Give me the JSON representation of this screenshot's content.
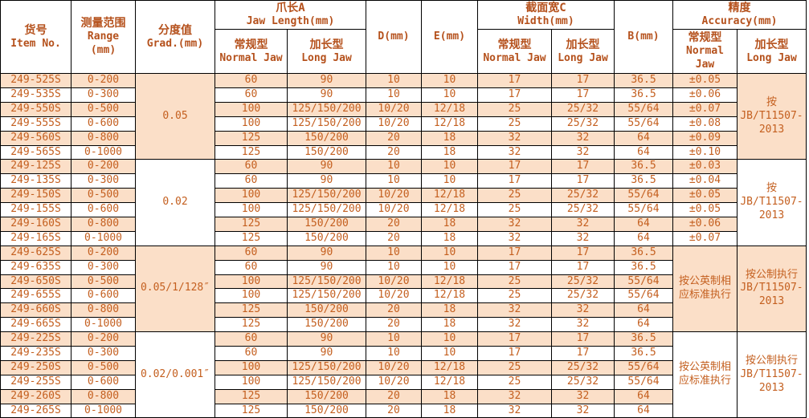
{
  "colors": {
    "header_text": "#b5511c",
    "body_text": "#c45f1f",
    "stripe_bg": "#fbdfc8",
    "border": "#000000",
    "white_bg": "#ffffff"
  },
  "table": {
    "header": {
      "item_no": "货号\nItem No.",
      "range": "测量范围\nRange\n(mm)",
      "grad": "分度值\nGrad.(mm)",
      "jaw": "爪长A\nJaw Length(mm)",
      "d": "D(mm)",
      "e": "E(mm)",
      "width": "截面宽C\nWidth(mm)",
      "b": "B(mm)",
      "accuracy": "精度\nAccuracy(mm)",
      "sub_normal": "常规型\nNormal Jaw",
      "sub_long": "加长型\nLong Jaw"
    },
    "groups": [
      {
        "grad": "0.05",
        "accuracy_long": "按\nJB/T11507-\n2013",
        "rows": [
          {
            "item": "249-525S",
            "range": "0-200",
            "jaw_normal": "60",
            "jaw_long": "90",
            "d": "10",
            "e": "10",
            "width_normal": "17",
            "width_long": "17",
            "b": "36.5",
            "accuracy_normal": "±0.05"
          },
          {
            "item": "249-535S",
            "range": "0-300",
            "jaw_normal": "60",
            "jaw_long": "90",
            "d": "10",
            "e": "10",
            "width_normal": "17",
            "width_long": "17",
            "b": "36.5",
            "accuracy_normal": "±0.06"
          },
          {
            "item": "249-550S",
            "range": "0-500",
            "jaw_normal": "100",
            "jaw_long": "125/150/200",
            "d": "10/20",
            "e": "12/18",
            "width_normal": "25",
            "width_long": "25/32",
            "b": "55/64",
            "accuracy_normal": "±0.07"
          },
          {
            "item": "249-555S",
            "range": "0-600",
            "jaw_normal": "100",
            "jaw_long": "125/150/200",
            "d": "10/20",
            "e": "12/18",
            "width_normal": "25",
            "width_long": "25/32",
            "b": "55/64",
            "accuracy_normal": "±0.08"
          },
          {
            "item": "249-560S",
            "range": "0-800",
            "jaw_normal": "125",
            "jaw_long": "150/200",
            "d": "20",
            "e": "18",
            "width_normal": "32",
            "width_long": "32",
            "b": "64",
            "accuracy_normal": "±0.09"
          },
          {
            "item": "249-565S",
            "range": "0-1000",
            "jaw_normal": "125",
            "jaw_long": "150/200",
            "d": "20",
            "e": "18",
            "width_normal": "32",
            "width_long": "32",
            "b": "64",
            "accuracy_normal": "±0.10"
          }
        ]
      },
      {
        "grad": "0.02",
        "accuracy_long": "按\nJB/T11507-\n2013",
        "rows": [
          {
            "item": "249-125S",
            "range": "0-200",
            "jaw_normal": "60",
            "jaw_long": "90",
            "d": "10",
            "e": "10",
            "width_normal": "17",
            "width_long": "17",
            "b": "36.5",
            "accuracy_normal": "±0.03"
          },
          {
            "item": "249-135S",
            "range": "0-300",
            "jaw_normal": "60",
            "jaw_long": "90",
            "d": "10",
            "e": "10",
            "width_normal": "17",
            "width_long": "17",
            "b": "36.5",
            "accuracy_normal": "±0.04"
          },
          {
            "item": "249-150S",
            "range": "0-500",
            "jaw_normal": "100",
            "jaw_long": "125/150/200",
            "d": "10/20",
            "e": "12/18",
            "width_normal": "25",
            "width_long": "25/32",
            "b": "55/64",
            "accuracy_normal": "±0.05"
          },
          {
            "item": "249-155S",
            "range": "0-600",
            "jaw_normal": "100",
            "jaw_long": "125/150/200",
            "d": "10/20",
            "e": "12/18",
            "width_normal": "25",
            "width_long": "25/32",
            "b": "55/64",
            "accuracy_normal": "±0.05"
          },
          {
            "item": "249-160S",
            "range": "0-800",
            "jaw_normal": "125",
            "jaw_long": "150/200",
            "d": "20",
            "e": "18",
            "width_normal": "32",
            "width_long": "32",
            "b": "64",
            "accuracy_normal": "±0.06"
          },
          {
            "item": "249-165S",
            "range": "0-1000",
            "jaw_normal": "125",
            "jaw_long": "150/200",
            "d": "20",
            "e": "18",
            "width_normal": "32",
            "width_long": "32",
            "b": "64",
            "accuracy_normal": "±0.07"
          }
        ]
      },
      {
        "grad": "0.05/1/128″",
        "accuracy_normal_merged": "按公英制相\n应标准执行",
        "accuracy_long": "按公制执行\nJB/T11507-\n2013",
        "rows": [
          {
            "item": "249-625S",
            "range": "0-200",
            "jaw_normal": "60",
            "jaw_long": "90",
            "d": "10",
            "e": "10",
            "width_normal": "17",
            "width_long": "17",
            "b": "36.5"
          },
          {
            "item": "249-635S",
            "range": "0-300",
            "jaw_normal": "60",
            "jaw_long": "90",
            "d": "10",
            "e": "10",
            "width_normal": "17",
            "width_long": "17",
            "b": "36.5"
          },
          {
            "item": "249-650S",
            "range": "0-500",
            "jaw_normal": "100",
            "jaw_long": "125/150/200",
            "d": "10/20",
            "e": "12/18",
            "width_normal": "25",
            "width_long": "25/32",
            "b": "55/64"
          },
          {
            "item": "249-655S",
            "range": "0-600",
            "jaw_normal": "100",
            "jaw_long": "125/150/200",
            "d": "10/20",
            "e": "12/18",
            "width_normal": "25",
            "width_long": "25/32",
            "b": "55/64"
          },
          {
            "item": "249-660S",
            "range": "0-800",
            "jaw_normal": "125",
            "jaw_long": "150/200",
            "d": "20",
            "e": "18",
            "width_normal": "32",
            "width_long": "32",
            "b": "64"
          },
          {
            "item": "249-665S",
            "range": "0-1000",
            "jaw_normal": "125",
            "jaw_long": "150/200",
            "d": "20",
            "e": "18",
            "width_normal": "32",
            "width_long": "32",
            "b": "64"
          }
        ]
      },
      {
        "grad": "0.02/0.001″",
        "accuracy_normal_merged": "按公英制相\n应标准执行",
        "accuracy_long": "按公制执行\nJB/T11507-\n2013",
        "rows": [
          {
            "item": "249-225S",
            "range": "0-200",
            "jaw_normal": "60",
            "jaw_long": "90",
            "d": "10",
            "e": "10",
            "width_normal": "17",
            "width_long": "17",
            "b": "36.5"
          },
          {
            "item": "249-235S",
            "range": "0-300",
            "jaw_normal": "60",
            "jaw_long": "90",
            "d": "10",
            "e": "10",
            "width_normal": "17",
            "width_long": "17",
            "b": "36.5"
          },
          {
            "item": "249-250S",
            "range": "0-500",
            "jaw_normal": "100",
            "jaw_long": "125/150/200",
            "d": "10/20",
            "e": "12/18",
            "width_normal": "25",
            "width_long": "25/32",
            "b": "55/64"
          },
          {
            "item": "249-255S",
            "range": "0-600",
            "jaw_normal": "100",
            "jaw_long": "125/150/200",
            "d": "10/20",
            "e": "12/18",
            "width_normal": "25",
            "width_long": "25/32",
            "b": "55/64"
          },
          {
            "item": "249-260S",
            "range": "0-800",
            "jaw_normal": "125",
            "jaw_long": "150/200",
            "d": "20",
            "e": "18",
            "width_normal": "32",
            "width_long": "32",
            "b": "64"
          },
          {
            "item": "249-265S",
            "range": "0-1000",
            "jaw_normal": "125",
            "jaw_long": "150/200",
            "d": "20",
            "e": "18",
            "width_normal": "32",
            "width_long": "32",
            "b": "64"
          }
        ]
      }
    ]
  }
}
